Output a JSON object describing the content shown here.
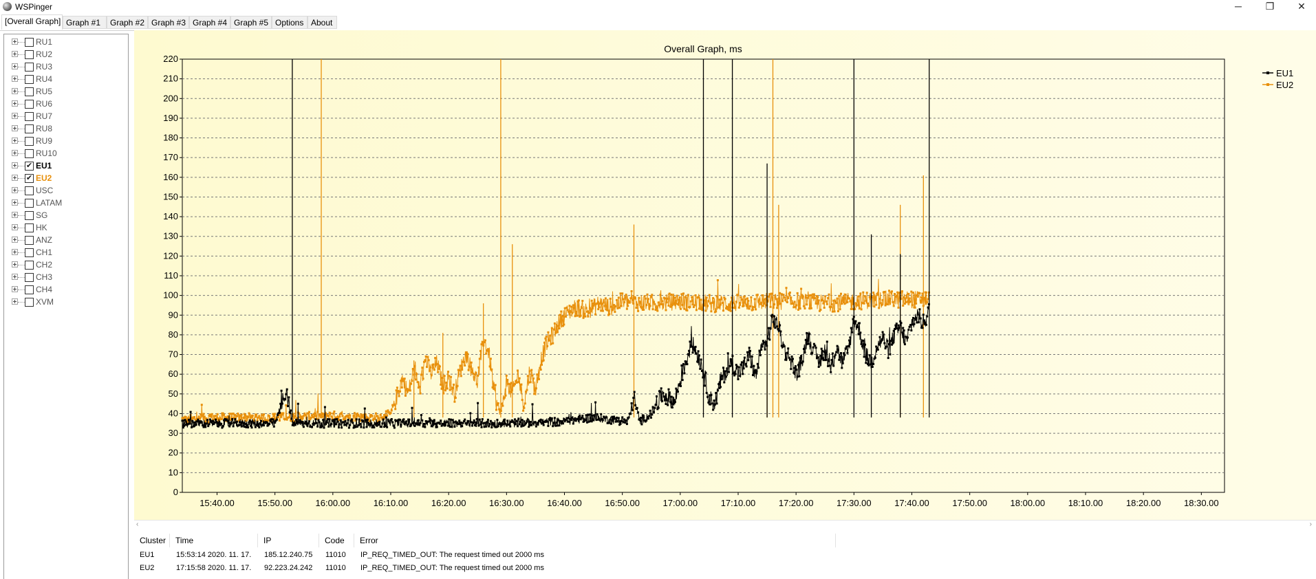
{
  "window": {
    "title": "WSPinger",
    "minimize": "─",
    "maximize": "❐",
    "close": "✕"
  },
  "tabs": [
    {
      "label": "[Overall Graph]",
      "active": true
    },
    {
      "label": "Graph #1"
    },
    {
      "label": "Graph #2"
    },
    {
      "label": "Graph #3"
    },
    {
      "label": "Graph #4"
    },
    {
      "label": "Graph #5"
    },
    {
      "label": "Options"
    },
    {
      "label": "About"
    }
  ],
  "tree": {
    "items": [
      {
        "label": "RU1",
        "checked": false
      },
      {
        "label": "RU2",
        "checked": false
      },
      {
        "label": "RU3",
        "checked": false
      },
      {
        "label": "RU4",
        "checked": false
      },
      {
        "label": "RU5",
        "checked": false
      },
      {
        "label": "RU6",
        "checked": false
      },
      {
        "label": "RU7",
        "checked": false
      },
      {
        "label": "RU8",
        "checked": false
      },
      {
        "label": "RU9",
        "checked": false
      },
      {
        "label": "RU10",
        "checked": false
      },
      {
        "label": "EU1",
        "checked": true,
        "color": "#000000"
      },
      {
        "label": "EU2",
        "checked": true,
        "color": "#e8900c"
      },
      {
        "label": "USC",
        "checked": false
      },
      {
        "label": "LATAM",
        "checked": false
      },
      {
        "label": "SG",
        "checked": false
      },
      {
        "label": "HK",
        "checked": false
      },
      {
        "label": "ANZ",
        "checked": false
      },
      {
        "label": "CH1",
        "checked": false
      },
      {
        "label": "CH2",
        "checked": false
      },
      {
        "label": "CH3",
        "checked": false
      },
      {
        "label": "CH4",
        "checked": false
      },
      {
        "label": "XVM",
        "checked": false
      }
    ]
  },
  "chart_data": {
    "type": "line",
    "title": "Overall Graph, ms",
    "xlabel": "",
    "ylabel": "",
    "ylim": [
      0,
      220
    ],
    "y_ticks": [
      0,
      10,
      20,
      30,
      40,
      50,
      60,
      70,
      80,
      90,
      100,
      110,
      120,
      130,
      140,
      150,
      160,
      170,
      180,
      190,
      200,
      210,
      220
    ],
    "x_range": [
      "15:34",
      "18:34"
    ],
    "x_ticks": [
      "15:40.00",
      "15:50.00",
      "16:00.00",
      "16:10.00",
      "16:20.00",
      "16:30.00",
      "16:40.00",
      "16:50.00",
      "17:00.00",
      "17:10.00",
      "17:20.00",
      "17:30.00",
      "17:40.00",
      "17:50.00",
      "18:00.00",
      "18:10.00",
      "18:20.00",
      "18:30.00"
    ],
    "grid": true,
    "legend_position": "top-right",
    "plot_background": [
      "#fefad0",
      "#fffde8"
    ],
    "series": [
      {
        "name": "EU1",
        "color": "#000000",
        "points": [
          [
            "15:34",
            35
          ],
          [
            "15:40",
            35
          ],
          [
            "15:50",
            35
          ],
          [
            "15:52",
            52
          ],
          [
            "15:53",
            35
          ],
          [
            "16:00",
            35
          ],
          [
            "16:10",
            35
          ],
          [
            "16:20",
            35
          ],
          [
            "16:30",
            35
          ],
          [
            "16:40",
            36
          ],
          [
            "16:45",
            38
          ],
          [
            "16:48",
            37
          ],
          [
            "16:51",
            36
          ],
          [
            "16:52",
            48
          ],
          [
            "16:53",
            36
          ],
          [
            "16:55",
            40
          ],
          [
            "16:57",
            50
          ],
          [
            "16:59",
            46
          ],
          [
            "17:00",
            57
          ],
          [
            "17:02",
            76
          ],
          [
            "17:03",
            70
          ],
          [
            "17:04",
            62
          ],
          [
            "17:05",
            48
          ],
          [
            "17:06",
            45
          ],
          [
            "17:07",
            57
          ],
          [
            "17:08",
            62
          ],
          [
            "17:09",
            66
          ],
          [
            "17:10",
            60
          ],
          [
            "17:11",
            64
          ],
          [
            "17:12",
            70
          ],
          [
            "17:13",
            58
          ],
          [
            "17:14",
            73
          ],
          [
            "17:15",
            77
          ],
          [
            "17:16",
            88
          ],
          [
            "17:17",
            84
          ],
          [
            "17:18",
            72
          ],
          [
            "17:19",
            68
          ],
          [
            "17:20",
            60
          ],
          [
            "17:21",
            66
          ],
          [
            "17:22",
            80
          ],
          [
            "17:23",
            72
          ],
          [
            "17:24",
            66
          ],
          [
            "17:25",
            72
          ],
          [
            "17:26",
            62
          ],
          [
            "17:27",
            74
          ],
          [
            "17:28",
            66
          ],
          [
            "17:29",
            72
          ],
          [
            "17:30",
            88
          ],
          [
            "17:31",
            82
          ],
          [
            "17:32",
            70
          ],
          [
            "17:33",
            66
          ],
          [
            "17:34",
            74
          ],
          [
            "17:35",
            78
          ],
          [
            "17:36",
            72
          ],
          [
            "17:37",
            80
          ],
          [
            "17:38",
            84
          ],
          [
            "17:39",
            76
          ],
          [
            "17:40",
            86
          ],
          [
            "17:41",
            90
          ],
          [
            "17:42",
            86
          ],
          [
            "17:43",
            92
          ]
        ],
        "spikes": [
          [
            "15:53",
            220
          ],
          [
            "17:04",
            220
          ],
          [
            "17:09",
            220
          ],
          [
            "17:15",
            167
          ],
          [
            "17:30",
            220
          ],
          [
            "17:33",
            131
          ],
          [
            "17:38",
            121
          ],
          [
            "17:43",
            220
          ]
        ]
      },
      {
        "name": "EU2",
        "color": "#e8900c",
        "points": [
          [
            "15:34",
            37
          ],
          [
            "15:40",
            38
          ],
          [
            "15:50",
            38
          ],
          [
            "16:00",
            39
          ],
          [
            "16:08",
            38
          ],
          [
            "16:10",
            40
          ],
          [
            "16:11",
            48
          ],
          [
            "16:12",
            58
          ],
          [
            "16:13",
            50
          ],
          [
            "16:14",
            62
          ],
          [
            "16:15",
            52
          ],
          [
            "16:16",
            68
          ],
          [
            "16:17",
            60
          ],
          [
            "16:18",
            66
          ],
          [
            "16:19",
            54
          ],
          [
            "16:20",
            58
          ],
          [
            "16:21",
            50
          ],
          [
            "16:22",
            62
          ],
          [
            "16:23",
            70
          ],
          [
            "16:24",
            62
          ],
          [
            "16:25",
            56
          ],
          [
            "16:26",
            78
          ],
          [
            "16:27",
            70
          ],
          [
            "16:28",
            48
          ],
          [
            "16:29",
            40
          ],
          [
            "16:30",
            56
          ],
          [
            "16:31",
            50
          ],
          [
            "16:32",
            60
          ],
          [
            "16:33",
            44
          ],
          [
            "16:34",
            62
          ],
          [
            "16:35",
            52
          ],
          [
            "16:36",
            68
          ],
          [
            "16:37",
            76
          ],
          [
            "16:38",
            80
          ],
          [
            "16:39",
            86
          ],
          [
            "16:40",
            90
          ],
          [
            "16:42",
            94
          ],
          [
            "16:44",
            92
          ],
          [
            "16:46",
            96
          ],
          [
            "16:48",
            94
          ],
          [
            "16:50",
            97
          ],
          [
            "16:55",
            96
          ],
          [
            "17:00",
            97
          ],
          [
            "17:05",
            96
          ],
          [
            "17:10",
            96
          ],
          [
            "17:15",
            97
          ],
          [
            "17:20",
            97
          ],
          [
            "17:25",
            96
          ],
          [
            "17:30",
            97
          ],
          [
            "17:35",
            98
          ],
          [
            "17:40",
            98
          ],
          [
            "17:43",
            98
          ]
        ],
        "spikes": [
          [
            "15:58",
            220
          ],
          [
            "16:14",
            67
          ],
          [
            "16:19",
            81
          ],
          [
            "16:26",
            96
          ],
          [
            "16:29",
            220
          ],
          [
            "16:31",
            126
          ],
          [
            "16:52",
            136
          ],
          [
            "17:15",
            130
          ],
          [
            "17:16",
            220
          ],
          [
            "17:17",
            146
          ],
          [
            "17:38",
            146
          ],
          [
            "17:42",
            161
          ]
        ]
      }
    ]
  },
  "errors": {
    "columns": [
      "Cluster",
      "Time",
      "IP",
      "Code",
      "Error"
    ],
    "rows": [
      {
        "cluster": "EU1",
        "time": "15:53:14 2020. 11. 17.",
        "ip": "185.12.240.75",
        "code": "11010",
        "error": "IP_REQ_TIMED_OUT: The request timed out 2000 ms"
      },
      {
        "cluster": "EU2",
        "time": "17:15:58 2020. 11. 17.",
        "ip": "92.223.24.242",
        "code": "11010",
        "error": "IP_REQ_TIMED_OUT: The request timed out 2000 ms"
      }
    ]
  }
}
